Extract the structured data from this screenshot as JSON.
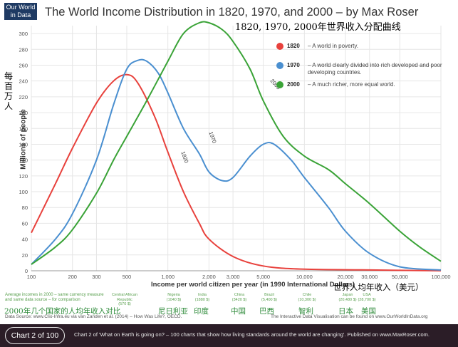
{
  "logo": "Our World in Data",
  "title": "The World Income Distribution in 1820, 1970, and 2000 – by Max Roser",
  "title_cn": "1820, 1970, 2000年世界收入分配曲线",
  "ylabel": "Millions of people",
  "ylabel_cn": "每百万人",
  "xlabel": "Income per world citizen per year (in 1990 International Dollars)",
  "xlabel_cn": "世界人均年收入（美元）",
  "legend": [
    {
      "year": "1820",
      "text": "– A world in poverty.",
      "color": "#e8413c"
    },
    {
      "year": "1970",
      "text": "– A world clearly divided into rich developed and poor developing countries.",
      "color": "#4a8fd0"
    },
    {
      "year": "2000",
      "text": "– A much richer, more equal world.",
      "color": "#3aa337"
    }
  ],
  "bottom_note": "Average incomes in 2000 – same currency measure and same data source – for comparison",
  "bottom_note_cn": "2000年几个国家的人均年收入对比",
  "countries": [
    {
      "name": "Central African Republic",
      "value": "(570 $)",
      "cn": ""
    },
    {
      "name": "Nigeria",
      "value": "(1040 $)",
      "cn": "尼日利亚"
    },
    {
      "name": "India",
      "value": "(1880 $)",
      "cn": "印度"
    },
    {
      "name": "China",
      "value": "(3420 $)",
      "cn": "中国"
    },
    {
      "name": "Brazil",
      "value": "(5,400 $)",
      "cn": "巴西"
    },
    {
      "name": "Chile",
      "value": "(10,300 $)",
      "cn": "智利"
    },
    {
      "name": "Japan",
      "value": "(20,480 $)",
      "cn": "日本"
    },
    {
      "name": "USA",
      "value": "(28,700 $)",
      "cn": "美国"
    }
  ],
  "source": "Data Source: www.Clio-Infra.eu via van Zanden et al. (2014) – How Was Life?, OECD.",
  "source2": "The Interactive Data Visualisation can be found on www.OurWorldInData.org",
  "footer": {
    "badge": "Chart 2 of 100",
    "text": "Chart 2 of 'What on Earth is going on? – 100 charts that show how living standards around the world are changing'. Published on www.MaxRoser.com."
  },
  "chart_data": {
    "type": "line",
    "title": "The World Income Distribution in 1820, 1970, and 2000 – by Max Roser",
    "xlabel": "Income per world citizen per year (in 1990 International Dollars)",
    "ylabel": "Millions of people",
    "xscale": "log",
    "xlim": [
      100,
      100000
    ],
    "ylim": [
      0,
      310
    ],
    "x_ticks": [
      100,
      200,
      300,
      500,
      1000,
      2000,
      3000,
      5000,
      10000,
      20000,
      30000,
      50000,
      100000
    ],
    "x_tick_labels": [
      "100",
      "200",
      "300",
      "500",
      "1,000",
      "2,000",
      "3,000",
      "5,000",
      "10,000",
      "20,000",
      "30,000",
      "50,000",
      "100,000"
    ],
    "y_ticks": [
      0,
      20,
      40,
      60,
      80,
      100,
      120,
      140,
      160,
      180,
      200,
      220,
      240,
      260,
      280,
      300
    ],
    "grid": true,
    "legend_position": "top-right",
    "series": [
      {
        "name": "1820",
        "color": "#e8413c",
        "x": [
          100,
          150,
          200,
          300,
          400,
          500,
          600,
          800,
          1000,
          1300,
          1700,
          2000,
          3000,
          5000,
          10000,
          30000,
          100000
        ],
        "y": [
          48,
          110,
          155,
          212,
          240,
          248,
          238,
          195,
          150,
          100,
          60,
          40,
          18,
          6,
          2,
          1,
          0
        ]
      },
      {
        "name": "1970",
        "color": "#4a8fd0",
        "x": [
          100,
          150,
          200,
          300,
          400,
          500,
          600,
          700,
          850,
          1000,
          1300,
          1700,
          2000,
          2500,
          3000,
          4000,
          5000,
          6000,
          8000,
          10000,
          15000,
          20000,
          30000,
          50000,
          100000
        ],
        "y": [
          8,
          40,
          72,
          140,
          210,
          255,
          266,
          265,
          250,
          225,
          180,
          148,
          125,
          114,
          118,
          145,
          160,
          160,
          140,
          118,
          80,
          50,
          22,
          5,
          1
        ]
      },
      {
        "name": "2000",
        "color": "#3aa337",
        "x": [
          100,
          150,
          200,
          300,
          400,
          500,
          700,
          1000,
          1300,
          1700,
          2000,
          2500,
          3000,
          4000,
          5000,
          7000,
          10000,
          15000,
          20000,
          30000,
          50000,
          70000,
          100000
        ],
        "y": [
          8,
          30,
          52,
          98,
          140,
          170,
          215,
          265,
          300,
          314,
          314,
          305,
          290,
          255,
          215,
          170,
          145,
          128,
          110,
          85,
          50,
          30,
          12
        ]
      }
    ],
    "annotations": [
      {
        "text": "1820",
        "series": "1820"
      },
      {
        "text": "1970",
        "series": "1970"
      },
      {
        "text": "2000",
        "series": "2000"
      }
    ]
  }
}
